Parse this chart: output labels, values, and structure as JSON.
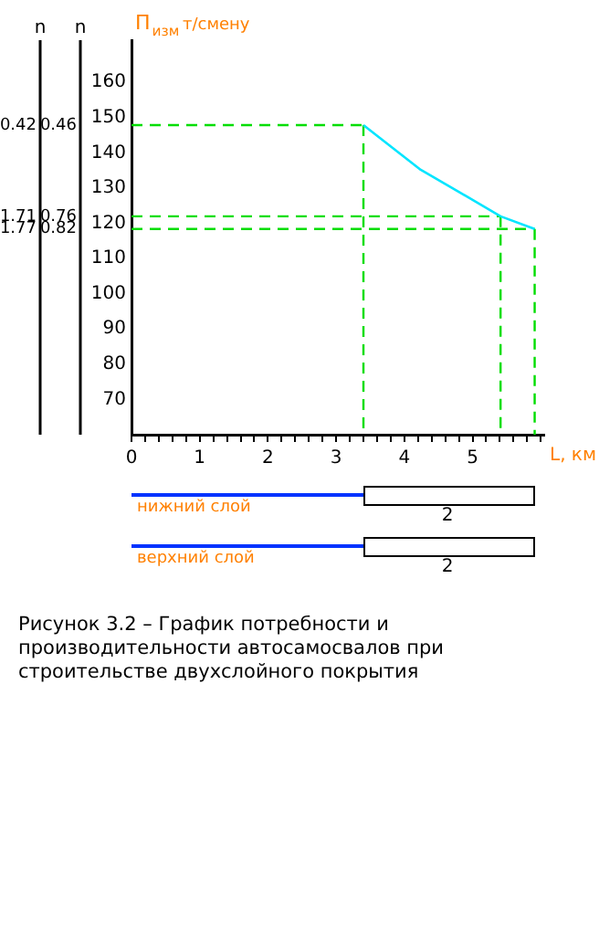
{
  "chart_data": [
    {
      "type": "line",
      "xlabel": "L, км",
      "ylabel": "П$_{изм}$ т/смену",
      "y2label": "n",
      "y3label": "n",
      "x": [
        3.4,
        4.24,
        4.81,
        5.41,
        5.91
      ],
      "series": [
        {
          "color": "#00e5ff",
          "values": [
            147.9,
            135.2,
            128.8,
            122,
            118.4
          ]
        }
      ],
      "xlim": [
        0,
        6.05
      ],
      "xticks": [
        0,
        {
          "value": 0.2,
          "label": null
        },
        {
          "value": 0.4,
          "label": null
        },
        {
          "value": 0.6,
          "label": null
        },
        {
          "value": 0.8,
          "label": null
        },
        1,
        {
          "value": 1.2,
          "label": null
        },
        {
          "value": 1.4,
          "label": null
        },
        {
          "value": 1.6,
          "label": null
        },
        {
          "value": 1.8,
          "label": null
        },
        2,
        {
          "value": 2.2,
          "label": null
        },
        {
          "value": 2.4,
          "label": null
        },
        {
          "value": 2.6,
          "label": null
        },
        {
          "value": 2.8,
          "label": null
        },
        3,
        {
          "value": 3.2,
          "label": null
        },
        {
          "value": 3.4,
          "label": null
        },
        {
          "value": 3.6,
          "label": null
        },
        {
          "value": 3.8,
          "label": null
        },
        4,
        {
          "value": 4.2,
          "label": null
        },
        {
          "value": 4.4,
          "label": null
        },
        {
          "value": 4.6,
          "label": null
        },
        {
          "value": 4.8,
          "label": null
        },
        5,
        {
          "value": 5.2,
          "label": null
        },
        {
          "value": 5.4,
          "label": null
        },
        {
          "value": 5.6,
          "label": null
        },
        {
          "value": 5.8,
          "label": null
        },
        {
          "value": 6,
          "label": null
        }
      ],
      "ylim": [
        60,
        172
      ],
      "yticks": [
        70,
        80,
        90,
        100,
        110,
        120,
        130,
        140,
        150,
        160
      ],
      "ref_lines": [
        {
          "axis": "x",
          "value": 3.4,
          "color": "#00dd00",
          "line_style": "dashed"
        },
        {
          "axis": "x",
          "value": 5.41,
          "color": "#00dd00",
          "line_style": "dashed"
        },
        {
          "axis": "x",
          "value": 5.91,
          "color": "#00dd00",
          "line_style": "dashed"
        },
        {
          "axis": "y",
          "value": 147.9,
          "color": "#00dd00",
          "line_style": "dashed"
        },
        {
          "axis": "y",
          "value": 122,
          "color": "#00dd00",
          "line_style": "dashed"
        },
        {
          "axis": "y",
          "value": 118.4,
          "color": "#00dd00",
          "line_style": "dashed"
        }
      ],
      "marker": "none",
      "line_style": "solid",
      "grid": false,
      "legend": false,
      "annotations": [
        "0.46",
        "0.76",
        "0.82",
        "0.42",
        "1.71",
        "1.77",
        "Рисунок 3.2 – График потребности и производительности автосамосвалов при\nстроительстве двухслойного покрытия"
      ]
    },
    {
      "type": "other",
      "annotations": [
        "нижний слой",
        "2",
        "верхний слой",
        "2"
      ]
    }
  ]
}
